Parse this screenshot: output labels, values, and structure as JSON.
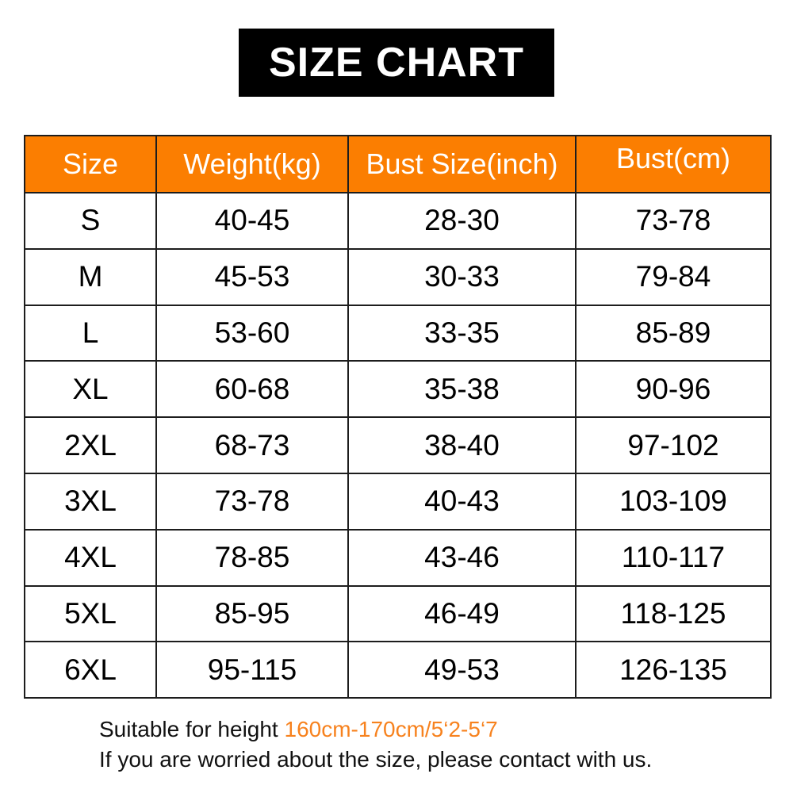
{
  "banner": {
    "title": "SIZE CHART",
    "bg_color": "#000000",
    "text_color": "#ffffff"
  },
  "table": {
    "header_bg_color": "#fb7e01",
    "header_text_color": "#ffffff",
    "border_color": "#1d1d1d",
    "columns": [
      "Size",
      "Weight(kg)",
      "Bust Size(inch)",
      "Bust(cm)"
    ],
    "rows": [
      [
        "S",
        "40-45",
        "28-30",
        "73-78"
      ],
      [
        "M",
        "45-53",
        "30-33",
        "79-84"
      ],
      [
        "L",
        "53-60",
        "33-35",
        "85-89"
      ],
      [
        "XL",
        "60-68",
        "35-38",
        "90-96"
      ],
      [
        "2XL",
        "68-73",
        "38-40",
        "97-102"
      ],
      [
        "3XL",
        "73-78",
        "40-43",
        "103-109"
      ],
      [
        "4XL",
        "78-85",
        "43-46",
        "110-117"
      ],
      [
        "5XL",
        "85-95",
        "46-49",
        "118-125"
      ],
      [
        "6XL",
        "95-115",
        "49-53",
        "126-135"
      ]
    ]
  },
  "footer": {
    "line1_prefix": "Suitable for height ",
    "line1_highlight": "160cm-170cm/5‘2-5‘7",
    "highlight_color": "#f7821e",
    "line2": "If you are worried about the size, please contact with us."
  }
}
